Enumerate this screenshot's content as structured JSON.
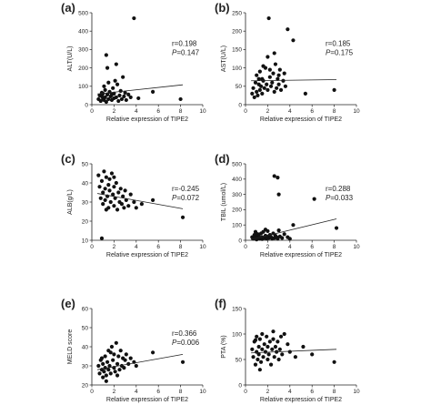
{
  "chart_data": [
    {
      "type": "scatter",
      "panel_label": "(a)",
      "xlabel": "Relative expression of TIPE2",
      "ylabel": "ALT(U/L)",
      "xlim": [
        0,
        10
      ],
      "ylim": [
        0,
        500
      ],
      "xticks": [
        0,
        2,
        4,
        6,
        8,
        10
      ],
      "yticks": [
        0,
        100,
        200,
        300,
        400,
        500
      ],
      "r_text": "r=0.198",
      "p_label": "P",
      "p_value": "=0.147",
      "stat_pos": "right",
      "fit": [
        [
          0.5,
          58
        ],
        [
          8.2,
          108
        ]
      ],
      "points": [
        [
          0.6,
          30
        ],
        [
          0.7,
          50
        ],
        [
          0.8,
          20
        ],
        [
          0.9,
          45
        ],
        [
          1.0,
          35
        ],
        [
          1.0,
          60
        ],
        [
          1.1,
          25
        ],
        [
          1.2,
          80
        ],
        [
          1.2,
          40
        ],
        [
          1.3,
          15
        ],
        [
          1.4,
          55
        ],
        [
          1.5,
          120
        ],
        [
          1.5,
          30
        ],
        [
          1.6,
          70
        ],
        [
          1.7,
          45
        ],
        [
          1.8,
          25
        ],
        [
          1.9,
          90
        ],
        [
          2.0,
          60
        ],
        [
          2.0,
          35
        ],
        [
          2.1,
          130
        ],
        [
          2.2,
          40
        ],
        [
          2.3,
          110
        ],
        [
          2.4,
          20
        ],
        [
          2.5,
          50
        ],
        [
          2.6,
          75
        ],
        [
          2.7,
          30
        ],
        [
          2.8,
          150
        ],
        [
          2.9,
          45
        ],
        [
          3.0,
          65
        ],
        [
          3.1,
          25
        ],
        [
          3.3,
          55
        ],
        [
          3.5,
          40
        ],
        [
          3.8,
          470
        ],
        [
          4.2,
          35
        ],
        [
          1.3,
          270
        ],
        [
          1.4,
          200
        ],
        [
          2.2,
          220
        ],
        [
          5.5,
          70
        ],
        [
          8.0,
          30
        ],
        [
          1.8,
          55
        ],
        [
          0.9,
          65
        ],
        [
          1.1,
          100
        ]
      ]
    },
    {
      "type": "scatter",
      "panel_label": "(b)",
      "xlabel": "Relative expression of TIPE2",
      "ylabel": "AST(U/L)",
      "xlim": [
        0,
        10
      ],
      "ylim": [
        0,
        250
      ],
      "xticks": [
        0,
        2,
        4,
        6,
        8,
        10
      ],
      "yticks": [
        0,
        50,
        100,
        150,
        200,
        250
      ],
      "r_text": "r=0.185",
      "p_label": "P",
      "p_value": "=0.175",
      "stat_pos": "right",
      "fit": [
        [
          0.5,
          65
        ],
        [
          8.2,
          68
        ]
      ],
      "points": [
        [
          0.6,
          30
        ],
        [
          0.7,
          45
        ],
        [
          0.8,
          20
        ],
        [
          0.9,
          60
        ],
        [
          1.0,
          35
        ],
        [
          1.0,
          80
        ],
        [
          1.1,
          25
        ],
        [
          1.2,
          55
        ],
        [
          1.3,
          40
        ],
        [
          1.3,
          90
        ],
        [
          1.4,
          50
        ],
        [
          1.5,
          70
        ],
        [
          1.5,
          30
        ],
        [
          1.6,
          65
        ],
        [
          1.7,
          45
        ],
        [
          1.8,
          100
        ],
        [
          1.9,
          55
        ],
        [
          2.0,
          130
        ],
        [
          2.0,
          40
        ],
        [
          2.1,
          235
        ],
        [
          2.2,
          75
        ],
        [
          2.3,
          50
        ],
        [
          2.4,
          60
        ],
        [
          2.5,
          85
        ],
        [
          2.6,
          35
        ],
        [
          2.7,
          110
        ],
        [
          2.8,
          45
        ],
        [
          2.9,
          70
        ],
        [
          3.0,
          55
        ],
        [
          3.1,
          95
        ],
        [
          3.2,
          40
        ],
        [
          3.4,
          65
        ],
        [
          3.6,
          50
        ],
        [
          3.8,
          205
        ],
        [
          4.3,
          175
        ],
        [
          3.0,
          80
        ],
        [
          5.4,
          30
        ],
        [
          8.0,
          40
        ],
        [
          2.2,
          95
        ],
        [
          1.6,
          105
        ],
        [
          1.2,
          70
        ],
        [
          2.6,
          140
        ],
        [
          3.5,
          85
        ]
      ]
    },
    {
      "type": "scatter",
      "panel_label": "(c)",
      "xlabel": "Relative expression of TIPE2",
      "ylabel": "ALB(g/L)",
      "xlim": [
        0,
        10
      ],
      "ylim": [
        10,
        50
      ],
      "xticks": [
        0,
        2,
        4,
        6,
        8,
        10
      ],
      "yticks": [
        10,
        20,
        30,
        40,
        50
      ],
      "r_text": "r=-0.245",
      "p_label": "P",
      "p_value": "=0.072",
      "stat_pos": "right",
      "fit": [
        [
          0.5,
          34.5
        ],
        [
          8.2,
          26.5
        ]
      ],
      "points": [
        [
          0.6,
          44
        ],
        [
          0.7,
          38
        ],
        [
          0.8,
          32
        ],
        [
          0.9,
          41
        ],
        [
          1.0,
          35
        ],
        [
          1.0,
          29
        ],
        [
          1.1,
          46
        ],
        [
          1.2,
          37
        ],
        [
          1.2,
          31
        ],
        [
          1.3,
          43
        ],
        [
          1.4,
          33
        ],
        [
          1.5,
          39
        ],
        [
          1.5,
          27
        ],
        [
          1.6,
          36
        ],
        [
          1.7,
          30
        ],
        [
          1.8,
          45
        ],
        [
          1.9,
          34
        ],
        [
          2.0,
          38
        ],
        [
          2.0,
          28
        ],
        [
          2.1,
          32
        ],
        [
          2.2,
          40
        ],
        [
          2.3,
          26
        ],
        [
          2.4,
          35
        ],
        [
          2.5,
          30
        ],
        [
          2.6,
          37
        ],
        [
          2.7,
          29
        ],
        [
          2.8,
          33
        ],
        [
          2.9,
          27
        ],
        [
          3.0,
          36
        ],
        [
          3.1,
          31
        ],
        [
          3.3,
          28
        ],
        [
          3.5,
          34
        ],
        [
          3.8,
          30
        ],
        [
          4.0,
          27
        ],
        [
          4.5,
          29
        ],
        [
          5.5,
          31
        ],
        [
          8.2,
          22
        ],
        [
          0.9,
          11
        ],
        [
          1.3,
          26
        ],
        [
          2.0,
          43
        ],
        [
          1.6,
          42
        ]
      ]
    },
    {
      "type": "scatter",
      "panel_label": "(d)",
      "xlabel": "Relative expression of TIPE2",
      "ylabel": "TBIL (umol/L)",
      "xlim": [
        0,
        10
      ],
      "ylim": [
        0,
        500
      ],
      "xticks": [
        0,
        2,
        4,
        6,
        8,
        10
      ],
      "yticks": [
        0,
        100,
        200,
        300,
        400,
        500
      ],
      "r_text": "r=0.288",
      "p_label": "P",
      "p_value": "=0.033",
      "stat_pos": "right",
      "fit": [
        [
          0.5,
          5
        ],
        [
          8.2,
          140
        ]
      ],
      "points": [
        [
          0.6,
          20
        ],
        [
          0.7,
          10
        ],
        [
          0.8,
          35
        ],
        [
          0.9,
          15
        ],
        [
          1.0,
          25
        ],
        [
          1.0,
          5
        ],
        [
          1.1,
          40
        ],
        [
          1.2,
          15
        ],
        [
          1.2,
          30
        ],
        [
          1.3,
          10
        ],
        [
          1.4,
          45
        ],
        [
          1.5,
          20
        ],
        [
          1.5,
          8
        ],
        [
          1.6,
          55
        ],
        [
          1.7,
          15
        ],
        [
          1.8,
          30
        ],
        [
          1.9,
          10
        ],
        [
          2.0,
          25
        ],
        [
          2.0,
          60
        ],
        [
          2.1,
          15
        ],
        [
          2.2,
          35
        ],
        [
          2.3,
          20
        ],
        [
          2.4,
          10
        ],
        [
          2.5,
          45
        ],
        [
          2.6,
          15
        ],
        [
          2.7,
          30
        ],
        [
          2.8,
          20
        ],
        [
          2.9,
          10
        ],
        [
          3.0,
          65
        ],
        [
          3.1,
          25
        ],
        [
          3.3,
          15
        ],
        [
          3.5,
          40
        ],
        [
          3.8,
          20
        ],
        [
          4.0,
          10
        ],
        [
          4.3,
          100
        ],
        [
          2.6,
          420
        ],
        [
          2.9,
          410
        ],
        [
          3.0,
          300
        ],
        [
          6.2,
          270
        ],
        [
          8.2,
          80
        ],
        [
          1.8,
          70
        ],
        [
          0.9,
          55
        ]
      ]
    },
    {
      "type": "scatter",
      "panel_label": "(e)",
      "xlabel": "Relative expression of TIPE2",
      "ylabel": "MELD score",
      "xlim": [
        0,
        10
      ],
      "ylim": [
        20,
        60
      ],
      "xticks": [
        0,
        2,
        4,
        6,
        8,
        10
      ],
      "yticks": [
        20,
        30,
        40,
        50,
        60
      ],
      "r_text": "r=0.366",
      "p_label": "P",
      "p_value": "=0.006",
      "stat_pos": "right",
      "fit": [
        [
          0.5,
          28
        ],
        [
          8.2,
          36
        ]
      ],
      "points": [
        [
          0.6,
          30
        ],
        [
          0.7,
          26
        ],
        [
          0.8,
          33
        ],
        [
          0.9,
          28
        ],
        [
          1.0,
          24
        ],
        [
          1.0,
          31
        ],
        [
          1.1,
          27
        ],
        [
          1.2,
          35
        ],
        [
          1.2,
          29
        ],
        [
          1.3,
          25
        ],
        [
          1.4,
          32
        ],
        [
          1.5,
          28
        ],
        [
          1.5,
          38
        ],
        [
          1.6,
          30
        ],
        [
          1.7,
          26
        ],
        [
          1.8,
          40
        ],
        [
          1.9,
          33
        ],
        [
          2.0,
          29
        ],
        [
          2.0,
          36
        ],
        [
          2.1,
          27
        ],
        [
          2.2,
          42
        ],
        [
          2.3,
          31
        ],
        [
          2.4,
          35
        ],
        [
          2.5,
          28
        ],
        [
          2.6,
          38
        ],
        [
          2.7,
          30
        ],
        [
          2.8,
          34
        ],
        [
          2.9,
          29
        ],
        [
          3.0,
          33
        ],
        [
          3.1,
          36
        ],
        [
          3.3,
          31
        ],
        [
          3.5,
          34
        ],
        [
          3.8,
          32
        ],
        [
          4.0,
          30
        ],
        [
          5.5,
          37
        ],
        [
          8.2,
          32
        ],
        [
          1.3,
          22
        ],
        [
          0.9,
          34
        ],
        [
          1.7,
          37
        ],
        [
          2.3,
          25
        ]
      ]
    },
    {
      "type": "scatter",
      "panel_label": "(f)",
      "xlabel": "Relative expression of TIPE2",
      "ylabel": "PTA (%)",
      "xlim": [
        0,
        10
      ],
      "ylim": [
        0,
        150
      ],
      "xticks": [
        0,
        2,
        4,
        6,
        8,
        10
      ],
      "yticks": [
        0,
        50,
        100,
        150
      ],
      "r_text": "r=-0.062",
      "p_label": "P",
      "p_value": "=0.652",
      "stat_pos": "bottom-right",
      "fit": [
        [
          0.5,
          63
        ],
        [
          8.2,
          70
        ]
      ],
      "points": [
        [
          0.6,
          70
        ],
        [
          0.7,
          55
        ],
        [
          0.8,
          85
        ],
        [
          0.9,
          40
        ],
        [
          1.0,
          65
        ],
        [
          1.0,
          95
        ],
        [
          1.1,
          50
        ],
        [
          1.2,
          75
        ],
        [
          1.2,
          60
        ],
        [
          1.3,
          90
        ],
        [
          1.4,
          45
        ],
        [
          1.5,
          70
        ],
        [
          1.5,
          100
        ],
        [
          1.6,
          55
        ],
        [
          1.7,
          80
        ],
        [
          1.8,
          65
        ],
        [
          1.9,
          95
        ],
        [
          2.0,
          50
        ],
        [
          2.0,
          75
        ],
        [
          2.1,
          60
        ],
        [
          2.2,
          85
        ],
        [
          2.3,
          40
        ],
        [
          2.4,
          70
        ],
        [
          2.5,
          90
        ],
        [
          2.6,
          55
        ],
        [
          2.7,
          75
        ],
        [
          2.8,
          65
        ],
        [
          2.9,
          85
        ],
        [
          3.0,
          50
        ],
        [
          3.1,
          70
        ],
        [
          3.3,
          60
        ],
        [
          3.5,
          100
        ],
        [
          3.8,
          80
        ],
        [
          4.0,
          65
        ],
        [
          4.5,
          55
        ],
        [
          5.2,
          75
        ],
        [
          6.0,
          60
        ],
        [
          8.0,
          45
        ],
        [
          1.3,
          30
        ],
        [
          2.5,
          105
        ],
        [
          0.9,
          88
        ],
        [
          3.2,
          95
        ]
      ]
    }
  ]
}
